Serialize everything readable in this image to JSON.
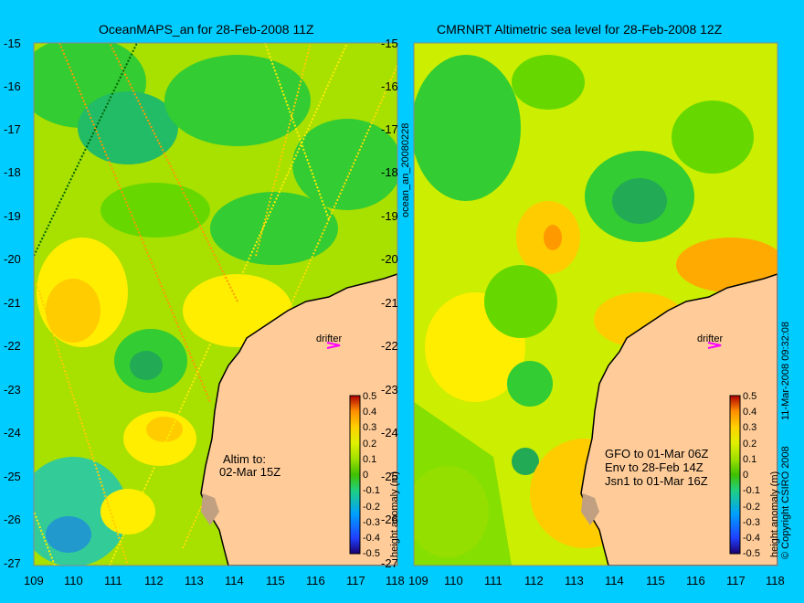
{
  "left_panel": {
    "title": "OceanMAPS_an for 28-Feb-2008 11Z",
    "annotation_line1": "Altim to:",
    "annotation_line2": "02-Mar 15Z",
    "drifter_label": "drifter",
    "side_label": "ocean_an_20080228"
  },
  "right_panel": {
    "title": "CMRNRT Altimetric sea level  for 28-Feb-2008 12Z",
    "annotation_lines": [
      "GFO to 01-Mar 06Z",
      "Env to 28-Feb 14Z",
      "Jsn1 to 01-Mar 16Z"
    ],
    "drifter_label": "drifter",
    "side_label": "11-Mar-2008 09:32:08",
    "copyright": "© Copyright CSIRO 2008"
  },
  "axes": {
    "lat_ticks": [
      "-15",
      "-16",
      "-17",
      "-18",
      "-19",
      "-20",
      "-21",
      "-22",
      "-23",
      "-24",
      "-25",
      "-26",
      "-27"
    ],
    "lon_ticks": [
      "109",
      "110",
      "111",
      "112",
      "113",
      "114",
      "115",
      "116",
      "117",
      "118"
    ],
    "lat_range": [
      -27,
      -15
    ],
    "lon_range": [
      109,
      118
    ]
  },
  "colorbar": {
    "label": "height anomaly (m)",
    "ticks": [
      "0.5",
      "0.4",
      "0.3",
      "0.2",
      "0.1",
      "0",
      "-0.1",
      "-0.2",
      "-0.3",
      "-0.4",
      "-0.5"
    ],
    "range": [
      -0.5,
      0.5
    ],
    "colors": [
      "#1a0070",
      "#2040ff",
      "#00a0ff",
      "#20d080",
      "#40c000",
      "#a0e000",
      "#e0f000",
      "#ffd000",
      "#ff9000",
      "#ff4000",
      "#b00000"
    ]
  },
  "colors": {
    "background": "#00ccff",
    "land": "#ffcc99",
    "coastline": "#000000"
  },
  "drifter_icon": "arrow-right-icon"
}
